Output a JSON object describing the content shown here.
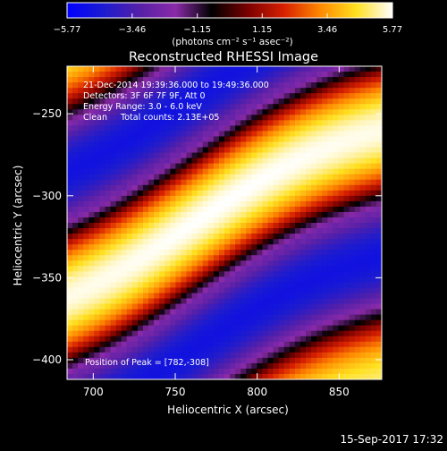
{
  "colorbar": {
    "tick_labels": [
      "−5.77",
      "−3.46",
      "−1.15",
      "1.15",
      "3.46",
      "5.77"
    ],
    "unit_label": "(photons cm⁻² s⁻¹ asec⁻²)",
    "range": [
      -5.77,
      5.77
    ],
    "palette": [
      "#0000ff",
      "#1b1bd0",
      "#5520a8",
      "#8a2aa8",
      "#000000",
      "#7a0000",
      "#d82000",
      "#ff8800",
      "#ffe020",
      "#ffffff"
    ]
  },
  "chart": {
    "title": "Reconstructed RHESSI Image",
    "xlabel": "Heliocentric X (arcsec)",
    "ylabel": "Heliocentric Y (arcsec)",
    "x_tick_labels": [
      "700",
      "750",
      "800",
      "850"
    ],
    "y_tick_labels": [
      "−250",
      "−300",
      "−350",
      "−400"
    ],
    "annotations": [
      "21-Dec-2014 19:39:36.000 to 19:49:36.000",
      "Detectors: 3F 6F 7F 9F, Att 0",
      "Energy Range: 3.0 - 6.0 keV",
      "Clean     Total counts: 2.13E+05"
    ],
    "peak_label": "Position of Peak = [782,-308]"
  },
  "footer": {
    "date": "15-Sep-2017 17:32"
  },
  "chart_data": {
    "type": "heatmap",
    "title": "Reconstructed RHESSI Image",
    "xlabel": "Heliocentric X (arcsec)",
    "ylabel": "Heliocentric Y (arcsec)",
    "xlim": [
      684,
      876
    ],
    "ylim": [
      -412,
      -221
    ],
    "x_ticks": [
      700,
      750,
      800,
      850
    ],
    "y_ticks": [
      -250,
      -300,
      -350,
      -400
    ],
    "colorbar_range": [
      -5.77,
      5.77
    ],
    "colorbar_unit": "(photons cm⁻² s⁻¹ asec⁻²)",
    "peak_position": [
      782,
      -308
    ],
    "time_range": "21-Dec-2014 19:39:36.000 to 19:49:36.000",
    "detectors": "3F 6F 7F 9F, Att 0",
    "energy_range": "3.0 - 6.0 keV",
    "method": "Clean",
    "total_counts": "2.13E+05"
  }
}
